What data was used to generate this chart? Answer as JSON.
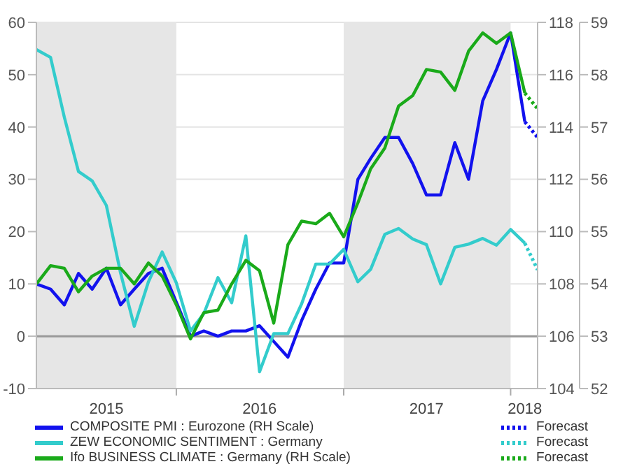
{
  "chart_data": {
    "type": "line",
    "x": [
      "2015-03",
      "2015-04",
      "2015-05",
      "2015-06",
      "2015-07",
      "2015-08",
      "2015-09",
      "2015-10",
      "2015-11",
      "2015-12",
      "2016-01",
      "2016-02",
      "2016-03",
      "2016-04",
      "2016-05",
      "2016-06",
      "2016-07",
      "2016-08",
      "2016-09",
      "2016-10",
      "2016-11",
      "2016-12",
      "2017-01",
      "2017-02",
      "2017-03",
      "2017-04",
      "2017-05",
      "2017-06",
      "2017-07",
      "2017-08",
      "2017-09",
      "2017-10",
      "2017-11",
      "2017-12",
      "2018-01",
      "2018-02"
    ],
    "series": [
      {
        "name": "COMPOSITE PMI : Eurozone (RH Scale)",
        "color": "#1212ee",
        "axis": "y3",
        "values": [
          54.0,
          53.9,
          53.6,
          54.2,
          53.9,
          54.3,
          53.6,
          53.9,
          54.2,
          54.3,
          53.65,
          53.0,
          53.1,
          53.0,
          53.1,
          53.1,
          53.2,
          52.9,
          52.6,
          53.3,
          53.9,
          54.4,
          54.4,
          56.0,
          56.4,
          56.8,
          56.8,
          56.3,
          55.7,
          55.7,
          56.7,
          56.0,
          57.5,
          58.1,
          58.8,
          57.1
        ]
      },
      {
        "name": "ZEW ECONOMIC SENTIMENT : Germany",
        "color": "#33cccc",
        "values": [
          54.8,
          53.3,
          41.9,
          31.5,
          29.7,
          25.0,
          12.1,
          1.9,
          10.4,
          16.1,
          10.2,
          1.0,
          4.3,
          11.2,
          6.4,
          19.2,
          -6.8,
          0.5,
          0.5,
          6.2,
          13.8,
          13.8,
          16.6,
          10.4,
          12.8,
          19.5,
          20.6,
          18.6,
          17.5,
          10.0,
          17.0,
          17.6,
          18.7,
          17.4,
          20.4,
          17.8
        ]
      },
      {
        "name": "Ifo BUSINESS CLIMATE : Germany (RH Scale)",
        "color": "#1aaa1a",
        "axis": "y2",
        "values": [
          108.0,
          108.7,
          108.6,
          107.7,
          108.3,
          108.6,
          108.6,
          108.0,
          108.8,
          108.3,
          107.2,
          105.9,
          106.9,
          107.0,
          108.0,
          108.9,
          108.5,
          106.5,
          109.5,
          110.4,
          110.3,
          110.7,
          109.8,
          111.1,
          112.4,
          113.2,
          114.8,
          115.2,
          116.2,
          116.1,
          115.4,
          116.9,
          117.6,
          117.2,
          117.6,
          115.3
        ]
      },
      {
        "name": "Forecast",
        "color": "#1212ee",
        "axis": "y3",
        "line_style": "dotted",
        "x": [
          "2018-02",
          "2018-03"
        ],
        "values": [
          57.1,
          56.8
        ]
      },
      {
        "name": "Forecast",
        "color": "#33cccc",
        "line_style": "dotted",
        "x": [
          "2018-02",
          "2018-03"
        ],
        "values": [
          17.8,
          12.7
        ]
      },
      {
        "name": "Forecast",
        "color": "#1aaa1a",
        "axis": "y2",
        "line_style": "dotted",
        "x": [
          "2018-02",
          "2018-03"
        ],
        "values": [
          115.3,
          114.7
        ]
      }
    ],
    "xlim": [
      "2015-03",
      "2018-03"
    ],
    "xticks": [
      {
        "value": "2015-08",
        "label": "2015"
      },
      {
        "value": "2016",
        "label": null
      },
      {
        "value": "2016-07",
        "label": "2016"
      },
      {
        "value": "2017",
        "label": null
      },
      {
        "value": "2017-07",
        "label": "2017"
      },
      {
        "value": "2018",
        "label": null
      },
      {
        "value": "2018-02",
        "label": "2018"
      }
    ],
    "ylim": [
      -10,
      60
    ],
    "yticks": [
      -10,
      0,
      10,
      20,
      30,
      40,
      50,
      60
    ],
    "y2lim": [
      104,
      118
    ],
    "y2ticks": [
      104,
      106,
      108,
      110,
      112,
      114,
      116,
      118
    ],
    "y3lim": [
      52,
      59
    ],
    "y3ticks": [
      52,
      53,
      54,
      55,
      56,
      57,
      58,
      59
    ],
    "bands": [
      {
        "axis": "x",
        "from": "2015-03",
        "to": "2016",
        "color": "#e6e6e6"
      },
      {
        "axis": "x",
        "from": "2017",
        "to": "2018",
        "color": "#e6e6e6"
      }
    ],
    "ref_lines": [
      {
        "axis": "y",
        "value": 0,
        "color": "#999999"
      }
    ],
    "grid": "y",
    "legend": "bottom"
  }
}
